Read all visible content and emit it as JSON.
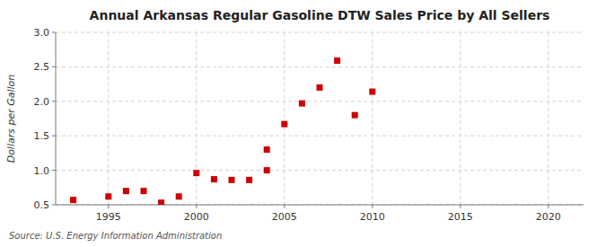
{
  "chart_data": {
    "type": "scatter",
    "title": "Annual Arkansas Regular Gasoline DTW Sales Price by All Sellers",
    "ylabel": "Dollars per Gallon",
    "source": "Source: U.S. Energy Information Administration",
    "x": [
      1993,
      1995,
      1996,
      1997,
      1998,
      1999,
      2000,
      2001,
      2002,
      2003,
      2004,
      2004,
      2005,
      2006,
      2007,
      2008,
      2009,
      2010
    ],
    "values": [
      0.57,
      0.62,
      0.7,
      0.7,
      0.53,
      0.62,
      0.96,
      0.87,
      0.86,
      0.86,
      1.0,
      1.3,
      1.67,
      1.97,
      2.2,
      2.59,
      1.8,
      2.14
    ],
    "color": "#cc0000",
    "marker": "square",
    "xlim": [
      1992,
      2022
    ],
    "ylim": [
      0.5,
      3.0
    ],
    "xticks": [
      1995,
      2000,
      2005,
      2010,
      2015,
      2020
    ],
    "yticks": [
      0.5,
      {
        "value": 1.0,
        "label": "1.0"
      },
      1.5,
      {
        "value": 2.0,
        "label": "2.0"
      },
      2.5,
      {
        "value": 3.0,
        "label": "3.0"
      }
    ],
    "grid": true
  }
}
